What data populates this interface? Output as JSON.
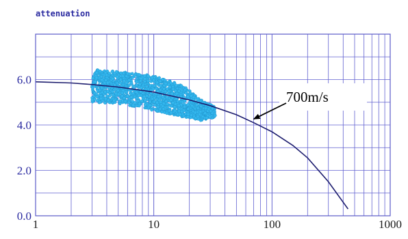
{
  "chart_data": {
    "type": "scatter",
    "title": "",
    "ylabel": "attenuation",
    "xlabel": "",
    "x_scale": "log",
    "xlim": [
      1,
      1000
    ],
    "ylim": [
      0,
      8
    ],
    "x_ticks": [
      {
        "value": 1,
        "label": "1"
      },
      {
        "value": 10,
        "label": "10"
      },
      {
        "value": 100,
        "label": "100"
      },
      {
        "value": 1000,
        "label": "1000"
      }
    ],
    "y_ticks": [
      {
        "value": 0,
        "label": "0.0"
      },
      {
        "value": 2,
        "label": "2.0"
      },
      {
        "value": 4,
        "label": "4.0"
      },
      {
        "value": 6,
        "label": "6.0"
      }
    ],
    "grid": true,
    "series": [
      {
        "name": "",
        "kind": "scatter-band",
        "color": "#33b7ee",
        "x_range": [
          3,
          33
        ],
        "upper": [
          {
            "x": 3,
            "y": 6.45
          },
          {
            "x": 5,
            "y": 6.35
          },
          {
            "x": 8,
            "y": 6.25
          },
          {
            "x": 12,
            "y": 6.05
          },
          {
            "x": 18,
            "y": 5.7
          },
          {
            "x": 25,
            "y": 5.1
          },
          {
            "x": 33,
            "y": 4.8
          }
        ],
        "lower": [
          {
            "x": 3,
            "y": 5.0
          },
          {
            "x": 5,
            "y": 4.95
          },
          {
            "x": 8,
            "y": 4.75
          },
          {
            "x": 12,
            "y": 4.55
          },
          {
            "x": 18,
            "y": 4.35
          },
          {
            "x": 25,
            "y": 4.2
          },
          {
            "x": 33,
            "y": 4.35
          }
        ]
      },
      {
        "name": "700m/s",
        "kind": "line",
        "color": "#1c1c6e",
        "points": [
          {
            "x": 1,
            "y": 5.9
          },
          {
            "x": 2,
            "y": 5.85
          },
          {
            "x": 3,
            "y": 5.78
          },
          {
            "x": 5,
            "y": 5.67
          },
          {
            "x": 10,
            "y": 5.45
          },
          {
            "x": 20,
            "y": 5.1
          },
          {
            "x": 30,
            "y": 4.85
          },
          {
            "x": 50,
            "y": 4.45
          },
          {
            "x": 70,
            "y": 4.1
          },
          {
            "x": 100,
            "y": 3.7
          },
          {
            "x": 150,
            "y": 3.1
          },
          {
            "x": 200,
            "y": 2.55
          },
          {
            "x": 300,
            "y": 1.5
          },
          {
            "x": 440,
            "y": 0.3
          }
        ]
      }
    ],
    "annotations": [
      {
        "text": "700m/s",
        "arrow_to": {
          "x": 70,
          "y": 4.2
        }
      }
    ]
  }
}
